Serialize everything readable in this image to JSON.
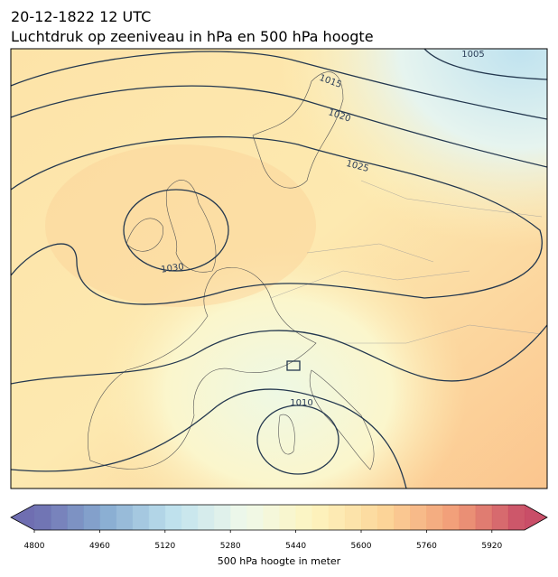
{
  "header": {
    "title": "20-12-1822 12 UTC",
    "subtitle": "Luchtdruk op zeeniveau in hPa en 500 hPa hoogte"
  },
  "contours": [
    {
      "label": 1005
    },
    {
      "label": 1015
    },
    {
      "label": 1020
    },
    {
      "label": 1025
    },
    {
      "label": 1030
    },
    {
      "label": 1010
    }
  ],
  "colorbar": {
    "label": "500 hPa hoogte in meter",
    "lim": [
      4800,
      6000
    ],
    "step": 40,
    "ticks": [
      4800,
      4960,
      5120,
      5280,
      5440,
      5600,
      5760,
      5920
    ],
    "cmap": [
      "#5f5ea8",
      "#7ba3cc",
      "#b9dfec",
      "#eef8e8",
      "#fdf3b8",
      "#fcd08e",
      "#f09369",
      "#c33b58"
    ]
  }
}
